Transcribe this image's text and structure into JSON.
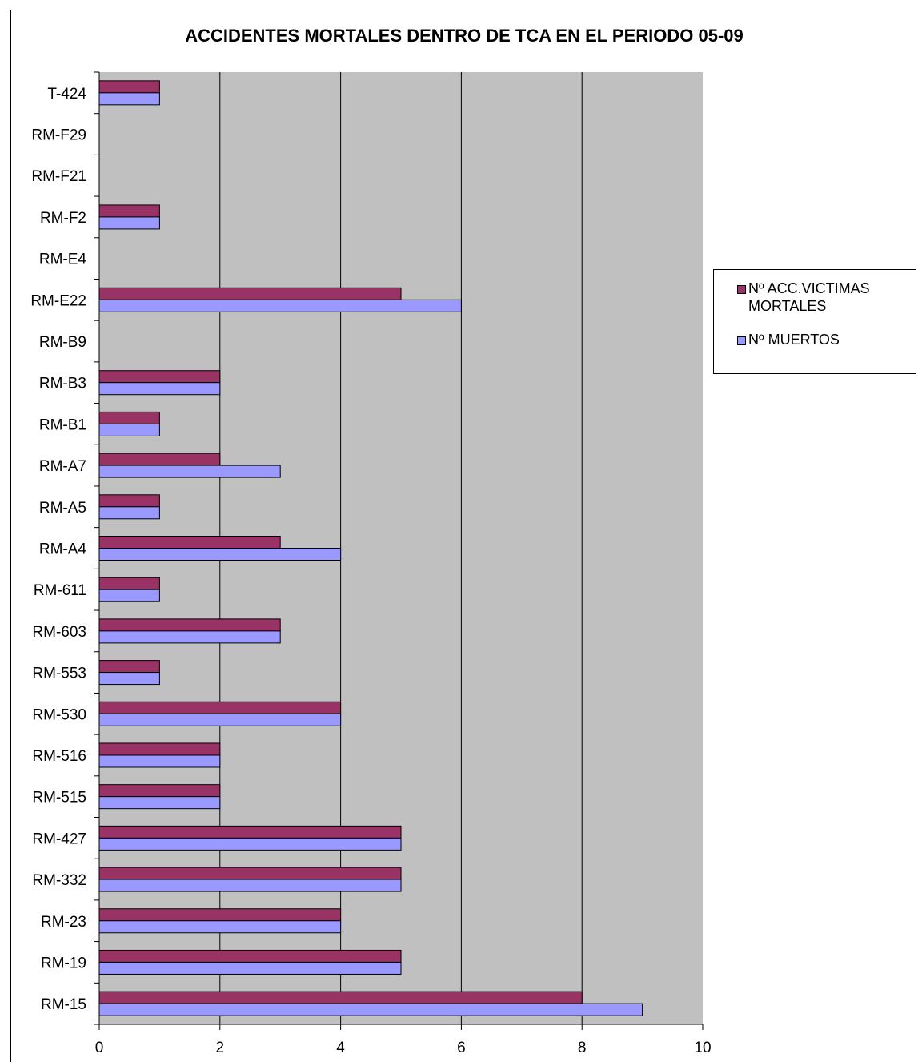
{
  "chart_data": {
    "type": "bar",
    "orientation": "horizontal",
    "title": "ACCIDENTES MORTALES DENTRO DE TCA EN EL PERIODO 05-09",
    "xlabel": "",
    "ylabel": "",
    "xlim": [
      0,
      10
    ],
    "x_ticks": [
      "0",
      "2",
      "4",
      "6",
      "8",
      "10"
    ],
    "grid": true,
    "legend_position": "right",
    "categories": [
      "T-424",
      "RM-F29",
      "RM-F21",
      "RM-F2",
      "RM-E4",
      "RM-E22",
      "RM-B9",
      "RM-B3",
      "RM-B1",
      "RM-A7",
      "RM-A5",
      "RM-A4",
      "RM-611",
      "RM-603",
      "RM-553",
      "RM-530",
      "RM-516",
      "RM-515",
      "RM-427",
      "RM-332",
      "RM-23",
      "RM-19",
      "RM-15"
    ],
    "series": [
      {
        "name": "Nº ACC.VICTIMAS MORTALES",
        "color": "#993366",
        "values": [
          1,
          0,
          0,
          1,
          0,
          5,
          0,
          2,
          1,
          2,
          1,
          3,
          1,
          3,
          1,
          4,
          2,
          2,
          5,
          5,
          4,
          5,
          8
        ]
      },
      {
        "name": "Nº MUERTOS",
        "color": "#9999ff",
        "values": [
          1,
          0,
          0,
          1,
          0,
          6,
          0,
          2,
          1,
          3,
          1,
          4,
          1,
          3,
          1,
          4,
          2,
          2,
          5,
          5,
          4,
          5,
          9
        ]
      }
    ],
    "plot_background": "#c0c0c0"
  },
  "legend": {
    "items": [
      {
        "line1": "Nº ACC.VICTIMAS",
        "line2": "MORTALES"
      },
      {
        "line1": "Nº MUERTOS",
        "line2": ""
      }
    ]
  }
}
